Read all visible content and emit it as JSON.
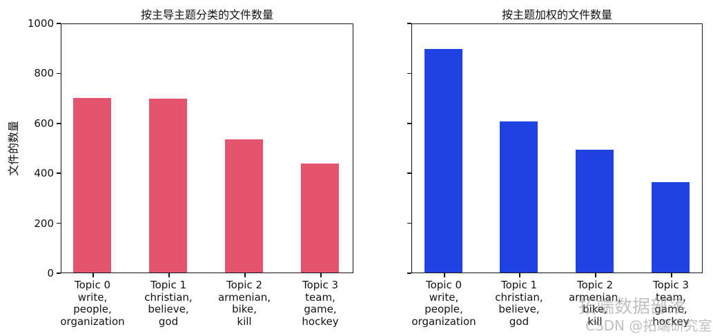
{
  "chart_data": [
    {
      "type": "bar",
      "title": "按主导主题分类的文件数量",
      "xlabel": "",
      "ylabel": "文件的数量",
      "ylim": [
        0,
        1000
      ],
      "yticks": [
        "0",
        "200",
        "400",
        "600",
        "800",
        "1000"
      ],
      "categories": [
        "Topic 0\nwrite,\npeople,\norganization",
        "Topic 1\nchristian,\nbelieve,\ngod",
        "Topic 2\narmenian,\nbike,\nkill",
        "Topic 3\nteam,\ngame,\nhockey"
      ],
      "values": [
        698,
        695,
        532,
        436
      ],
      "color": "#e5546f",
      "grid": false
    },
    {
      "type": "bar",
      "title": "按主题加权的文件数量",
      "xlabel": "",
      "ylabel": "",
      "ylim": [
        0,
        1000
      ],
      "yticks": [],
      "categories": [
        "Topic 0\nwrite,\npeople,\norganization",
        "Topic 1\nchristian,\nbelieve,\ngod",
        "Topic 2\narmenian,\nbike,\nkill",
        "Topic 3\nteam,\ngame,\nhockey"
      ],
      "values": [
        894,
        604,
        491,
        361
      ],
      "color": "#2042e0",
      "grid": false
    }
  ],
  "watermark": {
    "line1": "拓端数据部落",
    "line2": "CSDN @拓端研究室"
  }
}
